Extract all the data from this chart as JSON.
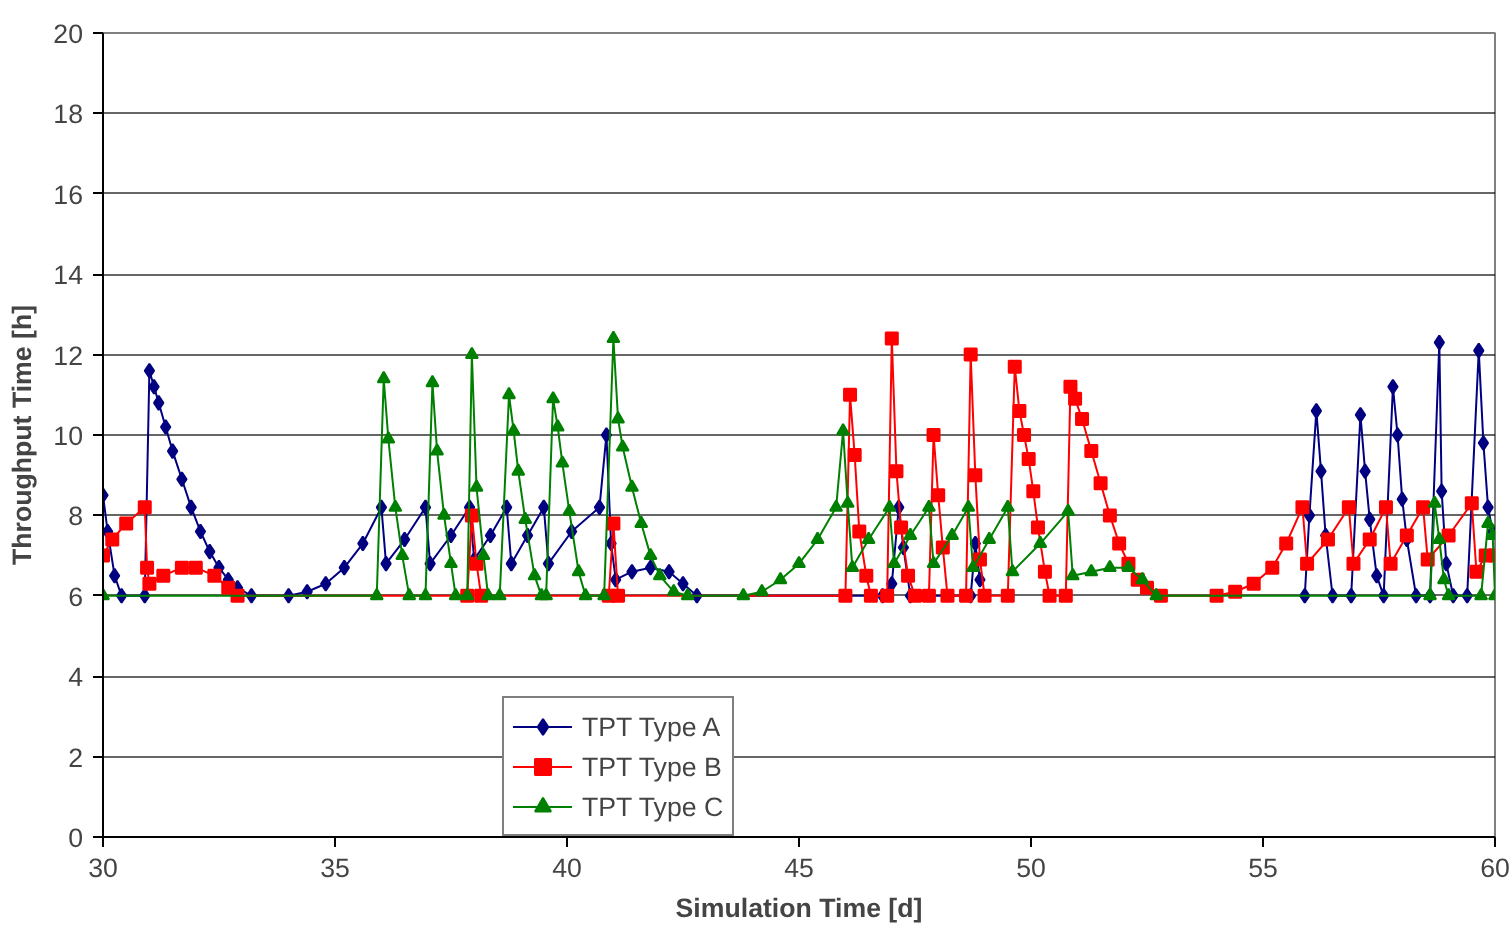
{
  "chart_data": {
    "type": "line",
    "xlabel": "Simulation Time [d]",
    "ylabel": "Throughput Time [h]",
    "xlim": [
      30,
      60
    ],
    "ylim": [
      0,
      20
    ],
    "xticks": [
      30,
      35,
      40,
      45,
      50,
      55,
      60
    ],
    "yticks": [
      0,
      2,
      4,
      6,
      8,
      10,
      12,
      14,
      16,
      18,
      20
    ],
    "grid": "y",
    "legend": "bottom",
    "line_style": "solid",
    "series": [
      {
        "name": "TPT Type A",
        "color": "#000080",
        "marker": "diamond",
        "x": [
          30,
          30.1,
          30.25,
          30.4,
          30.9,
          31.0,
          31.1,
          31.2,
          31.35,
          31.5,
          31.7,
          31.9,
          32.1,
          32.3,
          32.5,
          32.7,
          32.9,
          33.2,
          34.0,
          34.4,
          34.8,
          35.2,
          35.6,
          36.0,
          36.1,
          36.5,
          36.95,
          37.05,
          37.5,
          37.9,
          38.0,
          38.35,
          38.7,
          38.8,
          39.15,
          39.5,
          39.6,
          40.1,
          40.7,
          40.85,
          40.95,
          41.05,
          41.4,
          41.8,
          42.2,
          42.5,
          42.8,
          46.8,
          47.0,
          47.15,
          47.25,
          47.4,
          48.7,
          48.8,
          48.9,
          49.0,
          55.9,
          56.0,
          56.15,
          56.25,
          56.35,
          56.5,
          56.9,
          57.1,
          57.2,
          57.3,
          57.45,
          57.6,
          57.8,
          57.9,
          58.0,
          58.1,
          58.3,
          58.6,
          58.8,
          58.85,
          58.95,
          59.1,
          59.4,
          59.65,
          59.75,
          59.85,
          59.95
        ],
        "values": [
          8.5,
          7.6,
          6.5,
          6,
          6,
          11.6,
          11.2,
          10.8,
          10.2,
          9.6,
          8.9,
          8.2,
          7.6,
          7.1,
          6.7,
          6.4,
          6.2,
          6.0,
          6.0,
          6.1,
          6.3,
          6.7,
          7.3,
          8.2,
          6.8,
          7.4,
          8.2,
          6.8,
          7.5,
          8.2,
          6.9,
          7.5,
          8.2,
          6.8,
          7.5,
          8.2,
          6.8,
          7.6,
          8.2,
          10.0,
          7.3,
          6.4,
          6.6,
          6.7,
          6.6,
          6.3,
          6.0,
          6,
          6.3,
          8.2,
          7.2,
          6,
          6,
          7.3,
          6.4,
          null,
          6,
          8.0,
          10.6,
          9.1,
          7.5,
          6,
          6,
          10.5,
          9.1,
          7.9,
          6.5,
          6,
          11.2,
          10.0,
          8.4,
          7.4,
          6,
          6,
          12.3,
          8.6,
          6.8,
          6,
          6,
          12.1,
          9.8,
          8.2,
          7.6
        ]
      },
      {
        "name": "TPT Type B",
        "color": "#ff0000",
        "marker": "square",
        "x": [
          30,
          30.2,
          30.5,
          30.9,
          30.95,
          31.0,
          31.3,
          31.7,
          32.0,
          32.4,
          32.7,
          32.9,
          37.85,
          37.95,
          38.05,
          38.15,
          40.9,
          41.0,
          41.1,
          46.0,
          46.1,
          46.2,
          46.3,
          46.45,
          46.55,
          46.9,
          47.0,
          47.1,
          47.2,
          47.35,
          47.5,
          47.8,
          47.9,
          48.0,
          48.1,
          48.2,
          48.6,
          48.7,
          48.8,
          48.9,
          49.0,
          49.5,
          49.65,
          49.75,
          49.85,
          49.95,
          50.05,
          50.15,
          50.3,
          50.4,
          50.75,
          50.85,
          50.95,
          51.1,
          51.3,
          51.5,
          51.7,
          51.9,
          52.1,
          52.3,
          52.5,
          52.8,
          54.0,
          54.4,
          54.8,
          55.2,
          55.5,
          55.85,
          55.95,
          56.4,
          56.85,
          56.95,
          57.3,
          57.65,
          57.75,
          58.1,
          58.45,
          58.55,
          59.0,
          59.5,
          59.6,
          59.8,
          60
        ],
        "values": [
          7.0,
          7.4,
          7.8,
          8.2,
          6.7,
          6.3,
          6.5,
          6.7,
          6.7,
          6.5,
          6.2,
          6.0,
          6,
          8.0,
          6.8,
          6,
          6,
          7.8,
          6,
          6,
          11.0,
          9.5,
          7.6,
          6.5,
          6,
          6,
          12.4,
          9.1,
          7.7,
          6.5,
          6,
          6,
          10.0,
          8.5,
          7.2,
          6,
          6,
          12.0,
          9.0,
          6.9,
          6,
          6,
          11.7,
          10.6,
          10.0,
          9.4,
          8.6,
          7.7,
          6.6,
          6,
          6,
          11.2,
          10.9,
          10.4,
          9.6,
          8.8,
          8.0,
          7.3,
          6.8,
          6.4,
          6.2,
          6.0,
          6.0,
          6.1,
          6.3,
          6.7,
          7.3,
          8.2,
          6.8,
          7.4,
          8.2,
          6.8,
          7.4,
          8.2,
          6.8,
          7.5,
          8.2,
          6.9,
          7.5,
          8.3,
          6.6,
          7.0,
          7.0
        ]
      },
      {
        "name": "TPT Type C",
        "color": "#008000",
        "marker": "triangle",
        "x": [
          30,
          35.9,
          36.05,
          36.15,
          36.3,
          36.45,
          36.6,
          36.95,
          37.1,
          37.2,
          37.35,
          37.5,
          37.6,
          37.85,
          37.95,
          38.05,
          38.2,
          38.3,
          38.55,
          38.75,
          38.85,
          38.95,
          39.1,
          39.3,
          39.45,
          39.55,
          39.7,
          39.8,
          39.9,
          40.05,
          40.25,
          40.4,
          40.8,
          41.0,
          41.1,
          41.2,
          41.4,
          41.6,
          41.8,
          42.0,
          42.3,
          42.6,
          43.8,
          44.2,
          44.6,
          45.0,
          45.4,
          45.8,
          45.95,
          46.05,
          46.15,
          46.5,
          46.95,
          47.05,
          47.4,
          47.8,
          47.9,
          48.3,
          48.65,
          48.75,
          49.1,
          49.5,
          49.6,
          50.2,
          50.8,
          50.9,
          51.3,
          51.7,
          52.1,
          52.4,
          52.7,
          58.6,
          58.7,
          58.8,
          58.9,
          59.0,
          59.7,
          59.85,
          59.95,
          60
        ],
        "values": [
          6,
          6,
          11.4,
          9.9,
          8.2,
          7.0,
          6,
          6,
          11.3,
          9.6,
          8.0,
          6.8,
          6,
          6,
          12.0,
          8.7,
          7.0,
          6,
          6,
          11.0,
          10.1,
          9.1,
          7.9,
          6.5,
          6,
          6,
          10.9,
          10.2,
          9.3,
          8.1,
          6.6,
          6,
          6,
          12.4,
          10.4,
          9.7,
          8.7,
          7.8,
          7.0,
          6.5,
          6.1,
          6.0,
          6.0,
          6.1,
          6.4,
          6.8,
          7.4,
          8.2,
          10.1,
          8.3,
          6.7,
          7.4,
          8.2,
          6.8,
          7.5,
          8.2,
          6.8,
          7.5,
          8.2,
          6.7,
          7.4,
          8.2,
          6.6,
          7.3,
          8.1,
          6.5,
          6.6,
          6.7,
          6.7,
          6.4,
          6.0,
          6,
          8.3,
          7.4,
          6.4,
          6,
          6,
          7.8,
          7.5,
          6
        ]
      }
    ]
  }
}
